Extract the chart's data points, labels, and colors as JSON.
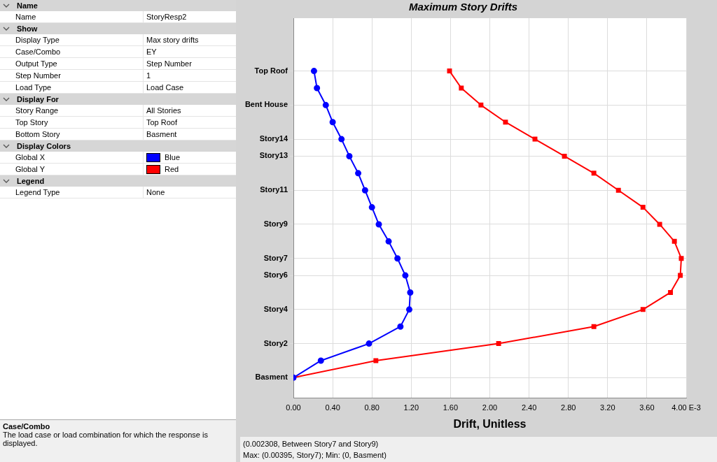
{
  "chart_data": [
    {
      "type": "other",
      "categories": [
        "Name",
        "Name",
        "Show",
        "Display Type",
        "Case/Combo",
        "Output Type",
        "Step Number",
        "Load Type",
        "Display For",
        "Story Range",
        "Top Story",
        "Bottom Story",
        "Display Colors",
        "Global X",
        "Global Y",
        "Legend",
        "Legend Type"
      ],
      "value_labels": [
        null,
        "StoryResp2",
        null,
        "Max story drifts",
        "EY",
        "Step Number",
        "1",
        "Load Case",
        null,
        "All Stories",
        "Top Roof",
        "Basment",
        null,
        "Blue",
        "Red",
        null,
        "None"
      ],
      "colors": [
        null,
        null,
        null,
        null,
        null,
        null,
        null,
        null,
        null,
        null,
        null,
        null,
        null,
        "#0000ff",
        "#ff0000",
        null,
        null
      ],
      "annotations": [
        "Case/Combo",
        "The load case or load combination for which the response is displayed."
      ]
    },
    {
      "type": "line",
      "title": "Maximum Story Drifts",
      "xlabel": "Drift, Unitless",
      "grid": true,
      "xlim": [
        0,
        4
      ],
      "xticks": [
        {
          "value": 0,
          "label": "0.00"
        },
        {
          "value": 0.4,
          "label": "0.40"
        },
        {
          "value": 0.8,
          "label": "0.80"
        },
        {
          "value": 1.2,
          "label": "1.20"
        },
        {
          "value": 1.6,
          "label": "1.60"
        },
        {
          "value": 2,
          "label": "2.00"
        },
        {
          "value": 2.4,
          "label": "2.40"
        },
        {
          "value": 2.8,
          "label": "2.80"
        },
        {
          "value": 3.2,
          "label": "3.20"
        },
        {
          "value": 3.6,
          "label": "3.60"
        },
        {
          "value": 4,
          "label": "4.00 E-3"
        }
      ],
      "orientation": "horizontal",
      "categories": [
        "Top Roof",
        null,
        "Bent House",
        null,
        "Story14",
        "Story13",
        null,
        "Story11",
        null,
        "Story9",
        null,
        "Story7",
        "Story6",
        null,
        "Story4",
        null,
        "Story2",
        null,
        "Basment"
      ],
      "series": [
        {
          "color": "#0000ff",
          "marker": "circle",
          "values": [
            0.21,
            0.24,
            0.33,
            0.4,
            0.49,
            0.57,
            0.66,
            0.73,
            0.8,
            0.87,
            0.97,
            1.06,
            1.14,
            1.19,
            1.18,
            1.09,
            0.77,
            0.28,
            0
          ]
        },
        {
          "color": "#ff0000",
          "marker": "square",
          "values": [
            1.59,
            1.71,
            1.91,
            2.16,
            2.46,
            2.76,
            3.06,
            3.31,
            3.56,
            3.73,
            3.88,
            3.95,
            3.94,
            3.84,
            3.56,
            3.06,
            2.09,
            0.84,
            0
          ]
        }
      ],
      "annotations": [
        "(0.002308, Between Story7 and Story9)",
        "Max: (0.00395, Story7);   Min: (0, Basment)"
      ]
    }
  ]
}
